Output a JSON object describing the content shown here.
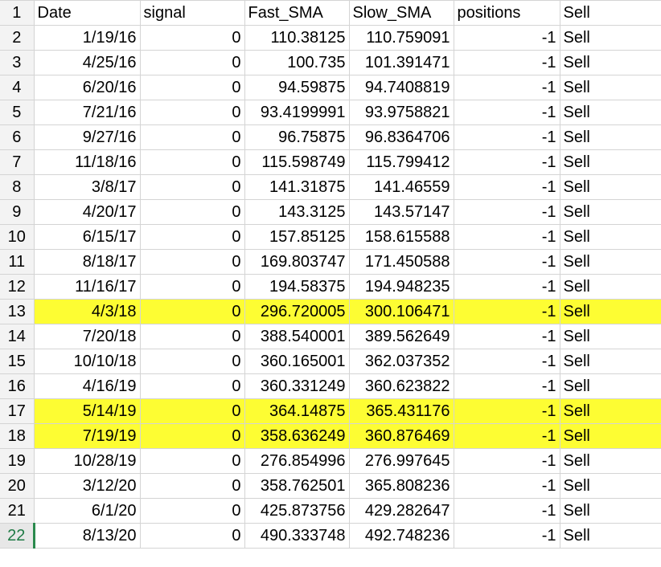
{
  "sheet": {
    "header_row_number": "1",
    "headers": [
      "Date",
      "signal",
      "Fast_SMA",
      "Slow_SMA",
      "positions",
      "Sell"
    ],
    "rows": [
      {
        "n": "2",
        "date": "1/19/16",
        "signal": "0",
        "fast": "110.38125",
        "slow": "110.759091",
        "pos": "-1",
        "action": "Sell",
        "highlight": false
      },
      {
        "n": "3",
        "date": "4/25/16",
        "signal": "0",
        "fast": "100.735",
        "slow": "101.391471",
        "pos": "-1",
        "action": "Sell",
        "highlight": false
      },
      {
        "n": "4",
        "date": "6/20/16",
        "signal": "0",
        "fast": "94.59875",
        "slow": "94.7408819",
        "pos": "-1",
        "action": "Sell",
        "highlight": false
      },
      {
        "n": "5",
        "date": "7/21/16",
        "signal": "0",
        "fast": "93.4199991",
        "slow": "93.9758821",
        "pos": "-1",
        "action": "Sell",
        "highlight": false
      },
      {
        "n": "6",
        "date": "9/27/16",
        "signal": "0",
        "fast": "96.75875",
        "slow": "96.8364706",
        "pos": "-1",
        "action": "Sell",
        "highlight": false
      },
      {
        "n": "7",
        "date": "11/18/16",
        "signal": "0",
        "fast": "115.598749",
        "slow": "115.799412",
        "pos": "-1",
        "action": "Sell",
        "highlight": false
      },
      {
        "n": "8",
        "date": "3/8/17",
        "signal": "0",
        "fast": "141.31875",
        "slow": "141.46559",
        "pos": "-1",
        "action": "Sell",
        "highlight": false
      },
      {
        "n": "9",
        "date": "4/20/17",
        "signal": "0",
        "fast": "143.3125",
        "slow": "143.57147",
        "pos": "-1",
        "action": "Sell",
        "highlight": false
      },
      {
        "n": "10",
        "date": "6/15/17",
        "signal": "0",
        "fast": "157.85125",
        "slow": "158.615588",
        "pos": "-1",
        "action": "Sell",
        "highlight": false
      },
      {
        "n": "11",
        "date": "8/18/17",
        "signal": "0",
        "fast": "169.803747",
        "slow": "171.450588",
        "pos": "-1",
        "action": "Sell",
        "highlight": false
      },
      {
        "n": "12",
        "date": "11/16/17",
        "signal": "0",
        "fast": "194.58375",
        "slow": "194.948235",
        "pos": "-1",
        "action": "Sell",
        "highlight": false
      },
      {
        "n": "13",
        "date": "4/3/18",
        "signal": "0",
        "fast": "296.720005",
        "slow": "300.106471",
        "pos": "-1",
        "action": "Sell",
        "highlight": true
      },
      {
        "n": "14",
        "date": "7/20/18",
        "signal": "0",
        "fast": "388.540001",
        "slow": "389.562649",
        "pos": "-1",
        "action": "Sell",
        "highlight": false
      },
      {
        "n": "15",
        "date": "10/10/18",
        "signal": "0",
        "fast": "360.165001",
        "slow": "362.037352",
        "pos": "-1",
        "action": "Sell",
        "highlight": false
      },
      {
        "n": "16",
        "date": "4/16/19",
        "signal": "0",
        "fast": "360.331249",
        "slow": "360.623822",
        "pos": "-1",
        "action": "Sell",
        "highlight": false
      },
      {
        "n": "17",
        "date": "5/14/19",
        "signal": "0",
        "fast": "364.14875",
        "slow": "365.431176",
        "pos": "-1",
        "action": "Sell",
        "highlight": true
      },
      {
        "n": "18",
        "date": "7/19/19",
        "signal": "0",
        "fast": "358.636249",
        "slow": "360.876469",
        "pos": "-1",
        "action": "Sell",
        "highlight": true
      },
      {
        "n": "19",
        "date": "10/28/19",
        "signal": "0",
        "fast": "276.854996",
        "slow": "276.997645",
        "pos": "-1",
        "action": "Sell",
        "highlight": false
      },
      {
        "n": "20",
        "date": "3/12/20",
        "signal": "0",
        "fast": "358.762501",
        "slow": "365.808236",
        "pos": "-1",
        "action": "Sell",
        "highlight": false
      },
      {
        "n": "21",
        "date": "6/1/20",
        "signal": "0",
        "fast": "425.873756",
        "slow": "429.282647",
        "pos": "-1",
        "action": "Sell",
        "highlight": false
      },
      {
        "n": "22",
        "date": "8/13/20",
        "signal": "0",
        "fast": "490.333748",
        "slow": "492.748236",
        "pos": "-1",
        "action": "Sell",
        "highlight": false,
        "active": true
      }
    ]
  },
  "colors": {
    "highlight": "#fdfd33",
    "active_row_number": "#1e7a44",
    "gridline": "#d4d4d4"
  }
}
